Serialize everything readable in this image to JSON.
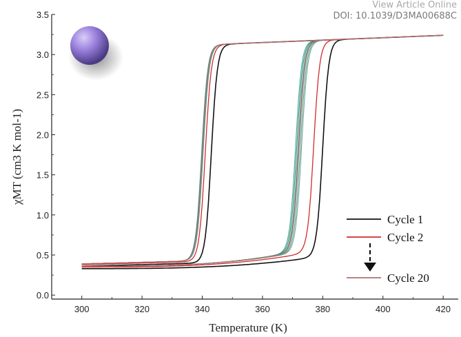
{
  "header": {
    "view_article": "View Article Online",
    "doi": "DOI: 10.1039/D3MA00688C"
  },
  "chart_data": {
    "type": "line",
    "xlabel": "Temperature (K)",
    "ylabel": "χMT (cm3 K mol-1)",
    "xlim": [
      290,
      425
    ],
    "ylim": [
      -0.05,
      3.5
    ],
    "xticks": [
      "300",
      "320",
      "340",
      "360",
      "380",
      "400",
      "420"
    ],
    "yticks": [
      "0.0",
      "0.5",
      "1.0",
      "1.5",
      "2.0",
      "2.5",
      "3.0",
      "3.5"
    ],
    "grid": false,
    "legend_position": "bottom-right",
    "series": [
      {
        "name": "Cycle 1",
        "color": "#111111",
        "x_heat": 383,
        "x_cool": 343,
        "x": [
          300,
          320,
          340,
          360,
          375,
          380,
          383,
          400,
          420
        ],
        "y": [
          0.33,
          0.35,
          0.37,
          0.41,
          0.5,
          1.7,
          3.18,
          3.21,
          3.24
        ]
      },
      {
        "name": "Cycle 2",
        "color": "#d12b2b",
        "x_heat": 380,
        "x_cool": 341,
        "x": [
          300,
          320,
          340,
          360,
          372,
          376,
          380,
          400,
          420
        ],
        "y": [
          0.35,
          0.37,
          0.39,
          0.44,
          0.56,
          1.6,
          3.18,
          3.21,
          3.24
        ]
      },
      {
        "name": "Cycle 20",
        "color": "#b07070",
        "x_heat": 375,
        "x_cool": 340,
        "x": [
          300,
          320,
          340,
          360,
          368,
          372,
          375,
          400,
          420
        ],
        "y": [
          0.36,
          0.38,
          0.4,
          0.45,
          0.56,
          1.7,
          3.18,
          3.21,
          3.24
        ]
      }
    ],
    "legend": {
      "entries": [
        "Cycle 1",
        "Cycle 2",
        "Cycle 20"
      ],
      "colors": [
        "#111111",
        "#d12b2b",
        "#b07070"
      ]
    }
  }
}
